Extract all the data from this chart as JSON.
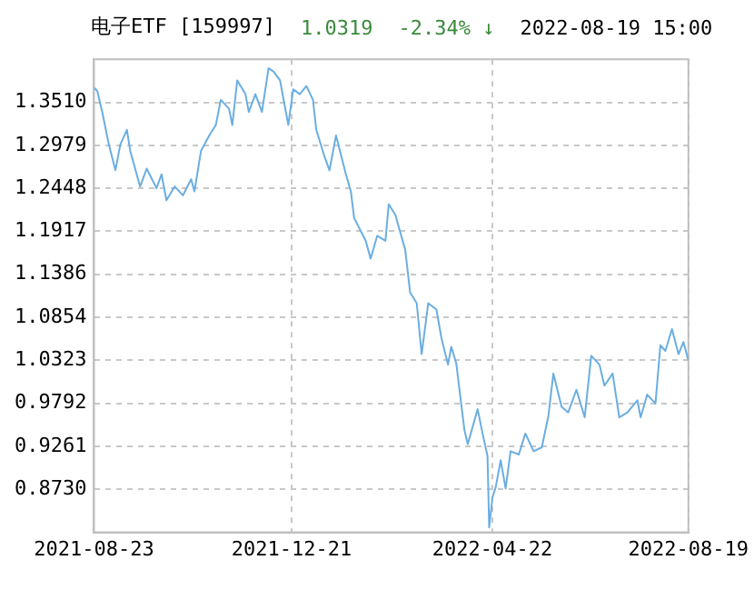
{
  "chart_data": {
    "type": "line",
    "title": "电子ETF [159997]",
    "annotations": [
      "1.0319",
      "-2.34% ↓",
      "2022-08-19 15:00"
    ],
    "x": [
      "2021-08-23",
      "2021-08-25",
      "2021-08-28",
      "2021-09-01",
      "2021-09-05",
      "2021-09-08",
      "2021-09-12",
      "2021-09-14",
      "2021-09-20",
      "2021-09-24",
      "2021-09-30",
      "2021-10-03",
      "2021-10-06",
      "2021-10-11",
      "2021-10-16",
      "2021-10-21",
      "2021-10-23",
      "2021-10-27",
      "2021-11-01",
      "2021-11-05",
      "2021-11-08",
      "2021-11-13",
      "2021-11-15",
      "2021-11-18",
      "2021-11-23",
      "2021-11-25",
      "2021-11-29",
      "2021-12-03",
      "2021-12-07",
      "2021-12-10",
      "2021-12-14",
      "2021-12-19",
      "2021-12-22",
      "2021-12-26",
      "2021-12-30",
      "2022-01-03",
      "2022-01-05",
      "2022-01-10",
      "2022-01-13",
      "2022-01-17",
      "2022-01-23",
      "2022-01-26",
      "2022-01-28",
      "2022-02-04",
      "2022-02-07",
      "2022-02-11",
      "2022-02-16",
      "2022-02-18",
      "2022-02-22",
      "2022-02-28",
      "2022-03-03",
      "2022-03-07",
      "2022-03-10",
      "2022-03-14",
      "2022-03-19",
      "2022-03-22",
      "2022-03-26",
      "2022-03-28",
      "2022-03-31",
      "2022-04-03",
      "2022-04-05",
      "2022-04-07",
      "2022-04-13",
      "2022-04-16",
      "2022-04-19",
      "2022-04-20",
      "2022-04-22",
      "2022-04-24",
      "2022-04-27",
      "2022-04-30",
      "2022-05-03",
      "2022-05-08",
      "2022-05-12",
      "2022-05-17",
      "2022-05-22",
      "2022-05-26",
      "2022-05-29",
      "2022-06-03",
      "2022-06-07",
      "2022-06-12",
      "2022-06-17",
      "2022-06-21",
      "2022-06-26",
      "2022-06-29",
      "2022-07-04",
      "2022-07-08",
      "2022-07-13",
      "2022-07-19",
      "2022-07-21",
      "2022-07-25",
      "2022-07-30",
      "2022-08-02",
      "2022-08-05",
      "2022-08-09",
      "2022-08-13",
      "2022-08-16",
      "2022-08-19"
    ],
    "series": [
      {
        "color": "#6aaee2",
        "values": [
          1.369,
          1.365,
          1.339,
          1.299,
          1.267,
          1.299,
          1.317,
          1.291,
          1.247,
          1.269,
          1.245,
          1.262,
          1.23,
          1.247,
          1.236,
          1.256,
          1.241,
          1.291,
          1.31,
          1.323,
          1.354,
          1.343,
          1.323,
          1.378,
          1.361,
          1.339,
          1.361,
          1.339,
          1.393,
          1.389,
          1.378,
          1.323,
          1.367,
          1.361,
          1.371,
          1.354,
          1.317,
          1.284,
          1.267,
          1.31,
          1.262,
          1.241,
          1.208,
          1.18,
          1.158,
          1.186,
          1.18,
          1.225,
          1.212,
          1.169,
          1.116,
          1.103,
          1.04,
          1.103,
          1.095,
          1.06,
          1.027,
          1.049,
          1.029,
          0.979,
          0.946,
          0.929,
          0.972,
          0.942,
          0.914,
          0.826,
          0.863,
          0.876,
          0.909,
          0.874,
          0.92,
          0.916,
          0.942,
          0.92,
          0.925,
          0.964,
          1.016,
          0.975,
          0.968,
          0.996,
          0.962,
          1.038,
          1.027,
          1.001,
          1.016,
          0.962,
          0.968,
          0.983,
          0.962,
          0.99,
          0.979,
          1.051,
          1.044,
          1.071,
          1.04,
          1.055,
          1.032
        ]
      }
    ],
    "xlim": [
      "2021-08-23",
      "2022-08-19"
    ],
    "xticks": [
      "2021-08-23",
      "2021-12-21",
      "2022-04-22",
      "2022-08-19"
    ],
    "ylim": [
      0.8199,
      1.4041
    ],
    "yticks": [
      {
        "value": 0.873,
        "label": "0.8730"
      },
      {
        "value": 0.9261,
        "label": "0.9261"
      },
      {
        "value": 0.9792,
        "label": "0.9792"
      },
      {
        "value": 1.0323,
        "label": "1.0323"
      },
      {
        "value": 1.0854,
        "label": "1.0854"
      },
      {
        "value": 1.1386,
        "label": "1.1386"
      },
      {
        "value": 1.1917,
        "label": "1.1917"
      },
      {
        "value": 1.2448,
        "label": "1.2448"
      },
      {
        "value": 1.2979,
        "label": "1.2979"
      },
      {
        "value": 1.351,
        "label": "1.3510"
      }
    ],
    "grid": true,
    "legend": false,
    "marker": "none",
    "line_style": "solid"
  }
}
